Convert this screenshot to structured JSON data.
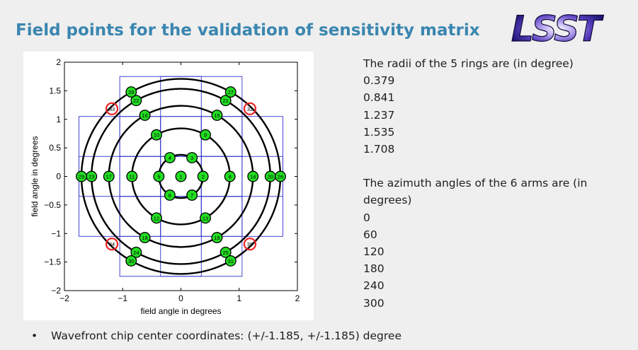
{
  "slide": {
    "title": "Field points for the validation of sensitivity matrix",
    "logo_text": "LSST",
    "right_text": {
      "radii_heading": "The radii of the 5 rings are (in degree)",
      "radii": [
        "0.379",
        "0.841",
        "1.237",
        "1.535",
        "1.708"
      ],
      "azimuth_heading_1": "The azimuth angles of the 6 arms are (in",
      "azimuth_heading_2": "degrees)",
      "azimuths": [
        "0",
        "60",
        "120",
        "180",
        "240",
        "300"
      ]
    },
    "bullet": "Wavefront chip center coordinates: (+/-1.185, +/-1.185) degree"
  },
  "chart_data": {
    "type": "scatter",
    "title": "",
    "xlabel": "field angle in degrees",
    "ylabel": "field angle in degrees",
    "xlim": [
      -2,
      2
    ],
    "ylim": [
      -2,
      2
    ],
    "x_ticks": [
      "−2",
      "−1",
      "0",
      "1",
      "2"
    ],
    "y_ticks": [
      "−2",
      "−1.5",
      "−1",
      "−0.5",
      "0",
      "0.5",
      "1",
      "1.5",
      "2"
    ],
    "grid": false,
    "rings": [
      0.379,
      0.841,
      1.237,
      1.535,
      1.708
    ],
    "field_points": [
      {
        "id": "1",
        "x": 0,
        "y": 0
      },
      {
        "id": "2",
        "x": 0.379,
        "y": 0
      },
      {
        "id": "3",
        "x": 0.19,
        "y": 0.328
      },
      {
        "id": "4",
        "x": -0.19,
        "y": 0.328
      },
      {
        "id": "5",
        "x": -0.379,
        "y": 0
      },
      {
        "id": "6",
        "x": -0.19,
        "y": -0.328
      },
      {
        "id": "7",
        "x": 0.19,
        "y": -0.328
      },
      {
        "id": "8",
        "x": 0.841,
        "y": 0
      },
      {
        "id": "9",
        "x": 0.42,
        "y": 0.728
      },
      {
        "id": "10",
        "x": -0.42,
        "y": 0.728
      },
      {
        "id": "11",
        "x": -0.841,
        "y": 0
      },
      {
        "id": "12",
        "x": -0.42,
        "y": -0.728
      },
      {
        "id": "13",
        "x": 0.42,
        "y": -0.728
      },
      {
        "id": "14",
        "x": 1.237,
        "y": 0
      },
      {
        "id": "15",
        "x": 0.619,
        "y": 1.071
      },
      {
        "id": "16",
        "x": -0.619,
        "y": 1.071
      },
      {
        "id": "17",
        "x": -1.237,
        "y": 0
      },
      {
        "id": "18",
        "x": -0.619,
        "y": -1.071
      },
      {
        "id": "19",
        "x": 0.619,
        "y": -1.071
      },
      {
        "id": "20",
        "x": 1.535,
        "y": 0
      },
      {
        "id": "21",
        "x": 0.768,
        "y": 1.329
      },
      {
        "id": "22",
        "x": -0.768,
        "y": 1.329
      },
      {
        "id": "23",
        "x": -1.535,
        "y": 0
      },
      {
        "id": "24",
        "x": -0.768,
        "y": -1.329
      },
      {
        "id": "25",
        "x": 0.768,
        "y": -1.329
      },
      {
        "id": "26",
        "x": 1.708,
        "y": 0
      },
      {
        "id": "27",
        "x": 0.854,
        "y": 1.479
      },
      {
        "id": "28",
        "x": -0.854,
        "y": 1.479
      },
      {
        "id": "29",
        "x": -1.708,
        "y": 0
      },
      {
        "id": "30",
        "x": -0.854,
        "y": -1.479
      },
      {
        "id": "31",
        "x": 0.854,
        "y": -1.479
      }
    ],
    "wavefront_points": [
      {
        "id": "32",
        "x": 1.185,
        "y": 1.185
      },
      {
        "id": "33",
        "x": -1.185,
        "y": 1.185
      },
      {
        "id": "34",
        "x": -1.185,
        "y": -1.185
      },
      {
        "id": "35",
        "x": 1.185,
        "y": -1.185
      }
    ],
    "colors": {
      "point_fill": "#22dd22",
      "ring": "#000000",
      "raft_outline": "#3333cc",
      "wavefront_circle": "#ee2222"
    }
  }
}
